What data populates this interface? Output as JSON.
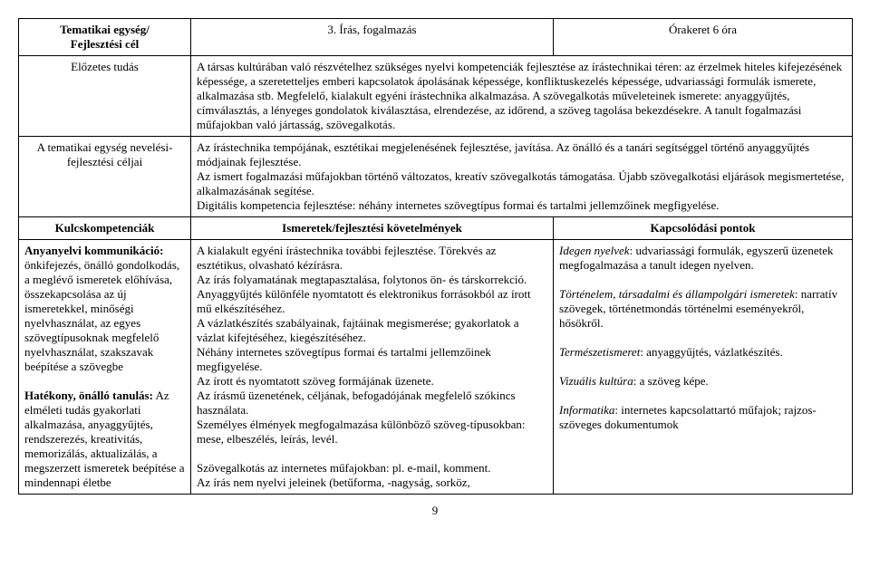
{
  "row1": {
    "left": "Tematikai egység/\nFejlesztési cél",
    "mid": "3. Írás, fogalmazás",
    "right": "Órakeret 6 óra"
  },
  "row2": {
    "left": "Előzetes tudás",
    "body": "A társas kultúrában való részvételhez szükséges nyelvi kompetenciák fejlesztése az írástechnikai téren: az érzelmek hiteles kifejezésének képessége, a szeretetteljes emberi kapcsolatok ápolásának képessége, konfliktuskezelés képessége, udvariassági formulák ismerete, alkalmazása stb. Megfelelő, kialakult egyéni írástechnika alkalmazása. A szövegalkotás műveleteinek ismerete: anyaggyűjtés, címválasztás, a lényeges gondolatok kiválasztása, elrendezése, az időrend, a szöveg tagolása bekezdésekre. A tanult fogalmazási műfajokban való jártasság, szövegalkotás."
  },
  "row3": {
    "left": "A tematikai egység nevelési-fejlesztési céljai",
    "body": "Az írástechnika tempójának, esztétikai megjelenésének fejlesztése, javítása. Az önálló és a tanári segítséggel történő anyaggyűjtés módjainak fejlesztése.\nAz ismert fogalmazási műfajokban történő változatos, kreatív szövegalkotás támogatása. Újabb szövegalkotási eljárások megismertetése, alkalmazásának segítése.\nDigitális kompetencia fejlesztése: néhány internetes szövegtípus formai és tartalmi jellemzőinek megfigyelése."
  },
  "header4": {
    "left": "Kulcskompetenciák",
    "mid": "Ismeretek/fejlesztési követelmények",
    "right": "Kapcsolódási pontok"
  },
  "row5": {
    "left": {
      "h1": "Anyanyelvi kommunikáció:",
      "t1": " önkifejezés, önálló gondolkodás, a meglévő ismeretek előhívása, összekapcsolása az új ismeretekkel, minőségi nyelvhasználat, az egyes szövegtípusoknak megfelelő nyelvhasználat, szakszavak beépítése a szövegbe",
      "h2": "Hatékony, önálló tanulás:",
      "t2": " Az elméleti tudás gyakorlati alkalmazása, anyaggyűjtés, rendszerezés, kreativitás, memorizálás, aktualizálás, a megszerzett ismeretek beépítése a mindennapi életbe"
    },
    "mid": "A kialakult egyéni írástechnika további fejlesztése. Törekvés az esztétikus, olvasható kézírásra.\nAz írás folyamatának megtapasztalása, folytonos ön- és társkorrekció.\nAnyaggyűjtés különféle nyomtatott és elektronikus forrásokból az írott mű elkészítéséhez.\nA vázlatkészítés szabályainak, fajtáinak megismerése; gyakorlatok a vázlat kifejtéséhez, kiegészítéséhez.\nNéhány internetes szövegtípus formai és tartalmi jellemzőinek megfigyelése.\nAz írott és nyomtatott szöveg formájának üzenete.\nAz írásmű üzenetének, céljának, befogadójának megfelelő szókincs használata.\nSzemélyes élmények megfogalmazása különböző szöveg-típusokban: mese, elbeszélés, leírás, levél.\n\nSzövegalkotás az internetes műfajokban: pl. e-mail, komment.\nAz írás nem nyelvi jeleinek (betűforma, -nagyság, sorköz,",
    "right": {
      "p1a": "Idegen nyelvek",
      "p1b": ": udvariassági formulák, egyszerű üzenetek megfogalmazása a tanult idegen nyelven.",
      "p2a": "Történelem, társadalmi és állampolgári ismeretek",
      "p2b": ": narratív szövegek, történetmondás történelmi eseményekről, hősökről.",
      "p3a": "Természetismeret",
      "p3b": ": anyaggyűjtés, vázlatkészítés.",
      "p4a": "Vizuális kultúra",
      "p4b": ": a szöveg képe.",
      "p5a": "Informatika",
      "p5b": ": internetes kapcsolattartó műfajok; rajzos-szöveges dokumentumok"
    }
  },
  "pageNumber": "9"
}
